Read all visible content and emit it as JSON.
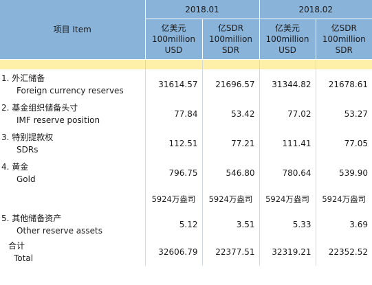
{
  "header": {
    "item_label": "项目  Item",
    "periods": [
      {
        "label": "2018.01",
        "units": [
          {
            "line1": "亿美元",
            "line2": "100million",
            "line3": "USD"
          },
          {
            "line1": "亿SDR",
            "line2": "100million",
            "line3": "SDR"
          }
        ]
      },
      {
        "label": "2018.02",
        "units": [
          {
            "line1": "亿美元",
            "line2": "100million",
            "line3": "USD"
          },
          {
            "line1": "亿SDR",
            "line2": "100million",
            "line3": "SDR"
          }
        ]
      }
    ]
  },
  "rows": [
    {
      "cn": "1. 外汇储备",
      "en": "Foreign currency reserves",
      "values": [
        "31614.57",
        "21696.57",
        "31344.82",
        "21678.61"
      ]
    },
    {
      "cn": "2. 基金组织储备头寸",
      "en": "IMF reserve position",
      "values": [
        "77.84",
        "53.42",
        "77.02",
        "53.27"
      ]
    },
    {
      "cn": "3. 特别提款权",
      "en": "SDRs",
      "values": [
        "112.51",
        "77.21",
        "111.41",
        "77.05"
      ]
    },
    {
      "cn": "4. 黄金",
      "en": "Gold",
      "values": [
        "796.75",
        "546.80",
        "780.64",
        "539.90"
      ]
    },
    {
      "cn": "",
      "en": "",
      "values": [
        "5924万盎司",
        "5924万盎司",
        "5924万盎司",
        "5924万盎司"
      ]
    },
    {
      "cn": "5. 其他储备资产",
      "en": "Other reserve assets",
      "values": [
        "5.12",
        "3.51",
        "5.33",
        "3.69"
      ]
    },
    {
      "cn": "合计",
      "en": "Total",
      "values": [
        "32606.79",
        "22377.51",
        "32319.21",
        "22352.52"
      ]
    }
  ],
  "colors": {
    "header_bg": "#8ab3d9",
    "band_bg": "#fef0a8"
  }
}
